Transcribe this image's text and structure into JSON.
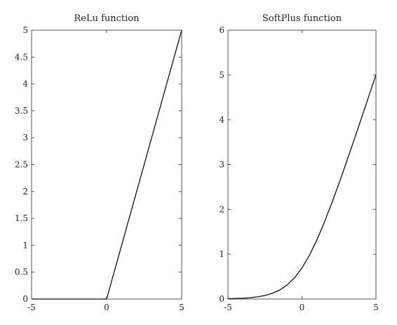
{
  "chart_data": [
    {
      "type": "line",
      "title": "ReLu function",
      "xlim": [
        -5,
        5
      ],
      "ylim": [
        0,
        5
      ],
      "xticks": [
        -5,
        0,
        5
      ],
      "xtick_labels": [
        "-5",
        "0",
        "5"
      ],
      "yticks": [
        0,
        0.5,
        1,
        1.5,
        2,
        2.5,
        3,
        3.5,
        4,
        4.5,
        5
      ],
      "ytick_labels": [
        "0",
        "0.5",
        "1",
        "1.5",
        "2",
        "2.5",
        "3",
        "3.5",
        "4",
        "4.5",
        "5"
      ],
      "grid": false,
      "series": [
        {
          "color": "#111111",
          "x": [
            -5,
            0,
            5
          ],
          "y": [
            0,
            0,
            5
          ]
        }
      ]
    },
    {
      "type": "line",
      "title": "SoftPlus function",
      "xlim": [
        -5,
        5
      ],
      "ylim": [
        0,
        6
      ],
      "xticks": [
        -5,
        0,
        5
      ],
      "xtick_labels": [
        "-5",
        "0",
        "5"
      ],
      "yticks": [
        0,
        1,
        2,
        3,
        4,
        5,
        6
      ],
      "ytick_labels": [
        "0",
        "1",
        "2",
        "3",
        "4",
        "5",
        "6"
      ],
      "grid": false,
      "series": [
        {
          "color": "#111111",
          "x": [
            -5,
            -4.5,
            -4,
            -3.5,
            -3,
            -2.5,
            -2,
            -1.5,
            -1,
            -0.5,
            0,
            0.5,
            1,
            1.5,
            2,
            2.5,
            3,
            3.5,
            4,
            4.5,
            5
          ],
          "y": [
            0.0067,
            0.011,
            0.018,
            0.0298,
            0.0486,
            0.0789,
            0.1269,
            0.2014,
            0.3133,
            0.4741,
            0.6931,
            0.9741,
            1.3133,
            1.7014,
            2.1269,
            2.5789,
            3.0486,
            3.5298,
            4.0181,
            4.5111,
            5.0067
          ]
        }
      ]
    }
  ]
}
